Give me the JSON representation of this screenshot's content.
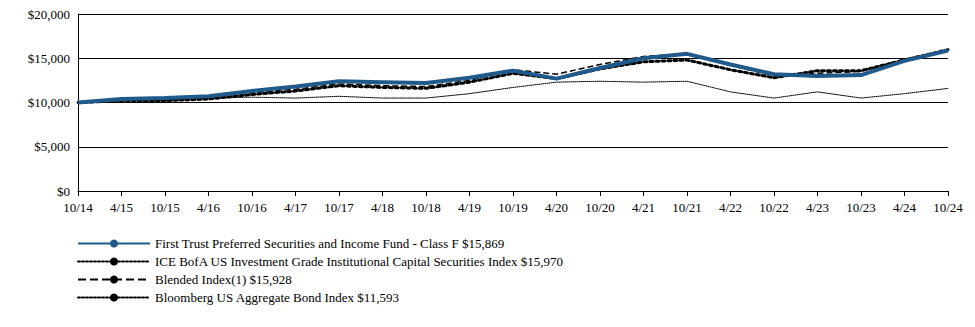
{
  "chart_data": {
    "type": "line",
    "categories": [
      "10/14",
      "4/15",
      "10/15",
      "4/16",
      "10/16",
      "4/17",
      "10/17",
      "4/18",
      "10/18",
      "4/19",
      "10/19",
      "4/20",
      "10/20",
      "4/21",
      "10/21",
      "4/22",
      "10/22",
      "4/23",
      "10/23",
      "4/24",
      "10/24"
    ],
    "series": [
      {
        "name": "First Trust Preferred Securities and Income Fund - Class F $15,869",
        "color": "#1f5a8a",
        "line_style": "solid",
        "values": [
          10000,
          10400,
          10500,
          10700,
          11300,
          11800,
          12400,
          12300,
          12200,
          12800,
          13600,
          12700,
          13900,
          15000,
          15500,
          14300,
          13200,
          13000,
          13100,
          14700,
          15869
        ]
      },
      {
        "name": "ICE BofA US Investment Grade Institutional Capital Securities Index $15,970",
        "color": "#000000",
        "line_style": "dotted",
        "values": [
          10000,
          10200,
          10200,
          10400,
          10900,
          11300,
          11900,
          11700,
          11600,
          12300,
          13300,
          12700,
          13800,
          14600,
          14800,
          13700,
          12800,
          13600,
          13600,
          14800,
          15970
        ]
      },
      {
        "name": "Blended Index(1) $15,928",
        "color": "#000000",
        "line_style": "dashed",
        "values": [
          10000,
          10300,
          10400,
          10600,
          11100,
          11500,
          12100,
          11900,
          11800,
          12500,
          13700,
          13200,
          14300,
          15200,
          15500,
          14200,
          13000,
          13300,
          13500,
          14900,
          15928
        ]
      },
      {
        "name": "Bloomberg US Aggregate Bond Index $11,593",
        "color": "#000000",
        "line_style": "dotted",
        "values": [
          10000,
          10300,
          10300,
          10500,
          10600,
          10500,
          10700,
          10500,
          10500,
          11000,
          11700,
          12300,
          12400,
          12300,
          12400,
          11200,
          10500,
          11200,
          10500,
          11000,
          11593
        ]
      }
    ],
    "ylim": [
      0,
      20000
    ],
    "yticks": [
      {
        "value": 0,
        "label": "$0"
      },
      {
        "value": 5000,
        "label": "$5,000"
      },
      {
        "value": 10000,
        "label": "$10,000"
      },
      {
        "value": 15000,
        "label": "$15,000"
      },
      {
        "value": 20000,
        "label": "$20,000"
      }
    ],
    "grid": true,
    "legend": "bottom-left"
  }
}
